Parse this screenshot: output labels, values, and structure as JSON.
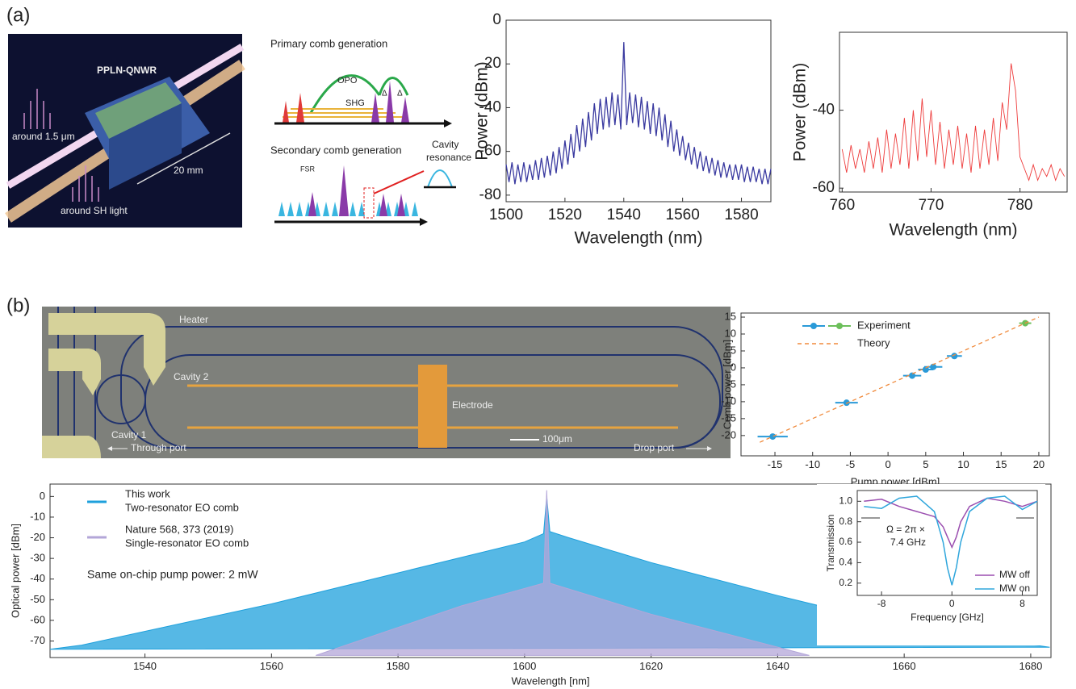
{
  "panel_labels": [
    "(a)",
    "(b)"
  ],
  "schematic": {
    "device": "PPLN-QNWR",
    "fundamental": "around 1.5 μm",
    "sh": "around SH light",
    "length": "20 mm"
  },
  "comb_diagram": {
    "primary": "Primary comb generation",
    "opo": "OPO",
    "shg": "SHG",
    "deltas": [
      "Δ",
      "Δ"
    ],
    "secondary": "Secondary comb generation",
    "fsr": "FSR",
    "cavity": [
      "Cavity",
      "resonance"
    ]
  },
  "micrograph": {
    "heater": "Heater",
    "cavity_2": "Cavity 2",
    "cavity_1": "Cavity 1",
    "electrode": "Electrode",
    "scale": "100μm",
    "through_port": "Through port",
    "drop_port": "Drop port"
  },
  "chart_data": [
    {
      "type": "line",
      "xlabel": "Wavelength (nm)",
      "ylabel": "Power (dBm)",
      "xlim": [
        1500,
        1590
      ],
      "xticks": [
        1500,
        1520,
        1540,
        1560,
        1580
      ],
      "ylim": [
        -83,
        0
      ],
      "yticks": [
        0,
        -20,
        -40,
        -60,
        -80
      ],
      "series": [
        {
          "color": "#3a3aa0",
          "x": [
            1500,
            1501,
            1502,
            1503,
            1504,
            1505,
            1506,
            1507,
            1508,
            1509,
            1510,
            1511,
            1512,
            1513,
            1514,
            1515,
            1516,
            1517,
            1518,
            1519,
            1520,
            1521,
            1522,
            1523,
            1524,
            1525,
            1526,
            1527,
            1528,
            1529,
            1530,
            1531,
            1532,
            1533,
            1534,
            1535,
            1536,
            1537,
            1538,
            1539,
            1540,
            1541,
            1542,
            1543,
            1544,
            1545,
            1546,
            1547,
            1548,
            1549,
            1550,
            1551,
            1552,
            1553,
            1554,
            1555,
            1556,
            1557,
            1558,
            1559,
            1560,
            1561,
            1562,
            1563,
            1564,
            1565,
            1566,
            1567,
            1568,
            1569,
            1570,
            1571,
            1572,
            1573,
            1574,
            1575,
            1576,
            1577,
            1578,
            1579,
            1580,
            1581,
            1582,
            1583,
            1584,
            1585,
            1586,
            1587,
            1588,
            1589,
            1590
          ],
          "values": [
            -66,
            -74,
            -65,
            -75,
            -66,
            -74,
            -65,
            -74,
            -66,
            -73,
            -64,
            -73,
            -63,
            -72,
            -62,
            -71,
            -60,
            -70,
            -58,
            -68,
            -55,
            -66,
            -52,
            -63,
            -48,
            -60,
            -45,
            -58,
            -42,
            -55,
            -38,
            -52,
            -36,
            -50,
            -35,
            -49,
            -33,
            -48,
            -34,
            -50,
            -10,
            -48,
            -33,
            -47,
            -34,
            -49,
            -35,
            -50,
            -37,
            -52,
            -38,
            -53,
            -40,
            -55,
            -43,
            -58,
            -46,
            -60,
            -50,
            -62,
            -53,
            -64,
            -56,
            -66,
            -58,
            -68,
            -60,
            -69,
            -62,
            -70,
            -63,
            -71,
            -64,
            -72,
            -65,
            -72,
            -66,
            -73,
            -66,
            -73,
            -66,
            -74,
            -67,
            -74,
            -67,
            -74,
            -68,
            -75,
            -68,
            -75,
            -68
          ]
        }
      ]
    },
    {
      "type": "line",
      "xlabel": "Wavelength (nm)",
      "ylabel": "Power (dBm)",
      "xlim": [
        759.7,
        785.3
      ],
      "xticks": [
        760,
        770,
        780
      ],
      "ylim": [
        -61,
        -20
      ],
      "yticks": [
        -40,
        -60
      ],
      "series": [
        {
          "color": "#ee3b3b",
          "x": [
            760,
            760.5,
            761,
            761.5,
            762,
            762.5,
            763,
            763.5,
            764,
            764.5,
            765,
            765.5,
            766,
            766.5,
            767,
            767.5,
            768,
            768.5,
            769,
            769.5,
            770,
            770.5,
            771,
            771.5,
            772,
            772.5,
            773,
            773.5,
            774,
            774.5,
            775,
            775.5,
            776,
            776.5,
            777,
            777.5,
            778,
            778.5,
            779,
            779.5,
            780,
            780.5,
            781,
            781.5,
            782,
            782.5,
            783,
            783.5,
            784,
            784.5,
            785
          ],
          "values": [
            -50,
            -56,
            -49,
            -55,
            -50,
            -56,
            -48,
            -55,
            -47,
            -56,
            -45,
            -55,
            -46,
            -54,
            -42,
            -55,
            -40,
            -53,
            -37,
            -52,
            -40,
            -54,
            -43,
            -55,
            -45,
            -54,
            -44,
            -55,
            -46,
            -56,
            -44,
            -55,
            -45,
            -54,
            -42,
            -53,
            -38,
            -45,
            -28,
            -35,
            -52,
            -55,
            -58,
            -54,
            -58,
            -55,
            -57,
            -54,
            -58,
            -55,
            -57
          ]
        }
      ]
    },
    {
      "type": "scatter",
      "xlabel": "Pump power [dBm]",
      "ylabel": "Comb power [dBm]",
      "xlim": [
        -19.5,
        21.4
      ],
      "xticks": [
        -15,
        -10,
        -5,
        0,
        5,
        10,
        15,
        20
      ],
      "ylim": [
        -26,
        16.2
      ],
      "yticks": [
        -20,
        -15,
        -10,
        -5,
        0,
        5,
        10,
        15
      ],
      "series": [
        {
          "name": "Experiment",
          "colors": [
            "#2a9ad8",
            "#2a9ad8",
            "#2a9ad8",
            "#2a9ad8",
            "#2a9ad8",
            "#2a9ad8",
            "#6cbf5a"
          ],
          "x": [
            -15.3,
            -5.5,
            3.2,
            5,
            6,
            8.8,
            18.2
          ],
          "values": [
            -20.3,
            -10.3,
            -2.3,
            -0.5,
            0.3,
            3.5,
            13.2
          ],
          "xerr": [
            2,
            1.5,
            1.2,
            1,
            1.2,
            1,
            0.8
          ]
        },
        {
          "name": "Theory",
          "color": "#f08a3c",
          "line_style": "dashed",
          "x": [
            -17,
            20
          ],
          "values": [
            -22,
            15
          ]
        }
      ]
    },
    {
      "type": "area",
      "xlabel": "Wavelength [nm]",
      "ylabel": "Optical power [dBm]",
      "annotation": "Same on-chip pump power: 2 mW",
      "xlim": [
        1525,
        1683.2
      ],
      "xticks": [
        1540,
        1560,
        1580,
        1600,
        1620,
        1640,
        1660,
        1680
      ],
      "ylim": [
        -78,
        6
      ],
      "yticks": [
        0,
        -10,
        -20,
        -30,
        -40,
        -50,
        -60,
        -70
      ],
      "series": [
        {
          "name": "This work",
          "description": "Two-resonator EO comb",
          "color": "#1ea0dc",
          "x": [
            1525,
            1530,
            1545,
            1560,
            1580,
            1600,
            1603,
            1603.5,
            1604,
            1607,
            1620,
            1640,
            1660,
            1683
          ],
          "values": [
            -74,
            -72,
            -62,
            -52,
            -37,
            -22,
            -18,
            0,
            -17,
            -20,
            -32,
            -48,
            -63,
            -73
          ]
        },
        {
          "name": "Nature 568, 373 (2019)",
          "description": "Single-resonator EO comb",
          "color": "#b3a6d8",
          "x": [
            1567,
            1590,
            1603,
            1603.5,
            1604,
            1620,
            1645
          ],
          "values": [
            -77,
            -53,
            -42,
            3,
            -42,
            -57,
            -77
          ]
        }
      ]
    },
    {
      "type": "line",
      "xlabel": "Frequency  [GHz]",
      "ylabel": "Transmission",
      "annotation": [
        "Ω = 2π ×",
        "7.4 GHz"
      ],
      "xlim": [
        -10.76,
        9.7
      ],
      "xticks": [
        -8,
        0,
        8
      ],
      "ylim": [
        0.08,
        1.105
      ],
      "yticks": [
        {
          "value": 1,
          "label": "1.0"
        },
        0.8,
        0.6,
        0.4,
        0.2
      ],
      "series": [
        {
          "name": "MW off",
          "color": "#9b4fb0",
          "x": [
            -10,
            -8,
            -6,
            -4,
            -2,
            -1,
            -0.5,
            0,
            0.5,
            1,
            2,
            4,
            6,
            8,
            9.7
          ],
          "values": [
            1.0,
            1.02,
            0.95,
            0.9,
            0.85,
            0.75,
            0.65,
            0.55,
            0.65,
            0.8,
            0.95,
            1.03,
            1.0,
            0.95,
            1.0
          ]
        },
        {
          "name": "MW on",
          "color": "#2fa6dc",
          "x": [
            -10,
            -8,
            -6,
            -4,
            -2,
            -1,
            -0.5,
            0,
            0.5,
            1,
            2,
            4,
            6,
            8,
            9.7
          ],
          "values": [
            0.95,
            0.93,
            1.03,
            1.05,
            0.9,
            0.6,
            0.35,
            0.18,
            0.35,
            0.6,
            0.9,
            1.03,
            1.05,
            0.92,
            1.0
          ]
        }
      ]
    }
  ]
}
